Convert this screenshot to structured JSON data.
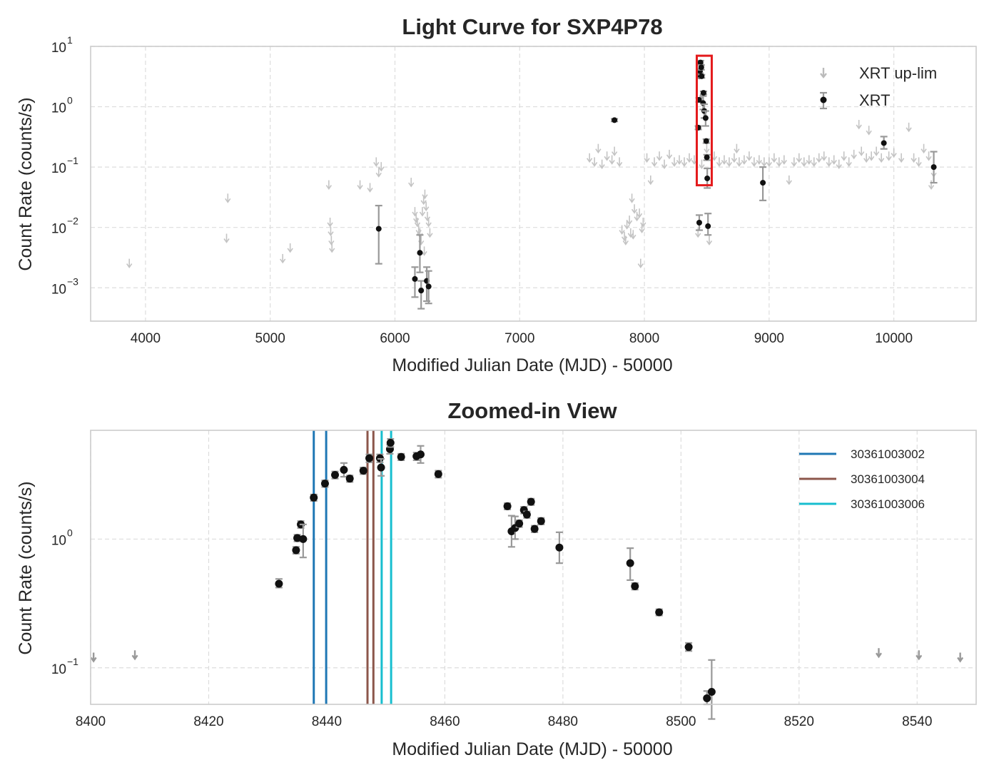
{
  "chart_data": [
    {
      "type": "scatter",
      "title": "Light Curve for SXP4P78",
      "xlabel": "Modified Julian Date (MJD) - 50000",
      "ylabel": "Count Rate (counts/s)",
      "yscale": "log",
      "xlim": [
        3560,
        10660
      ],
      "ylim": [
        0.00028,
        10
      ],
      "xticks": [
        4000,
        5000,
        6000,
        7000,
        8000,
        9000,
        10000
      ],
      "xtick_labels": [
        "4000",
        "5000",
        "6000",
        "7000",
        "8000",
        "9000",
        "10000"
      ],
      "yticks": [
        {
          "value": 0.001,
          "base": "10",
          "exp": "−3"
        },
        {
          "value": 0.01,
          "base": "10",
          "exp": "−2"
        },
        {
          "value": 0.1,
          "base": "10",
          "exp": "−1"
        },
        {
          "value": 1,
          "base": "10",
          "exp": "0"
        },
        {
          "value": 10,
          "base": "10",
          "exp": "1"
        }
      ],
      "grid": true,
      "legend": {
        "position": "top-right",
        "entries": [
          "XRT up-lim",
          "XRT"
        ]
      },
      "annotations": [
        {
          "type": "highlight-box",
          "color": "#e41a1c",
          "x_range": [
            8420,
            8540
          ],
          "y_range": [
            0.05,
            7
          ]
        }
      ],
      "series": [
        {
          "name": "XRT up-lim",
          "kind": "upper-limit",
          "points": [
            [
              3870,
              0.0025
            ],
            [
              4650,
              0.0065
            ],
            [
              4660,
              0.03
            ],
            [
              5100,
              0.003
            ],
            [
              5160,
              0.0045
            ],
            [
              5470,
              0.05
            ],
            [
              5480,
              0.012
            ],
            [
              5485,
              0.0085
            ],
            [
              5490,
              0.006
            ],
            [
              5495,
              0.0045
            ],
            [
              5720,
              0.05
            ],
            [
              5800,
              0.045
            ],
            [
              5850,
              0.12
            ],
            [
              5870,
              0.08
            ],
            [
              5890,
              0.1
            ],
            [
              6130,
              0.055
            ],
            [
              6160,
              0.018
            ],
            [
              6170,
              0.014
            ],
            [
              6180,
              0.012
            ],
            [
              6190,
              0.009
            ],
            [
              6200,
              0.008
            ],
            [
              6210,
              0.006
            ],
            [
              6220,
              0.018
            ],
            [
              6230,
              0.028
            ],
            [
              6240,
              0.035
            ],
            [
              6250,
              0.022
            ],
            [
              6260,
              0.015
            ],
            [
              6270,
              0.012
            ],
            [
              6280,
              0.008
            ],
            [
              6235,
              0.004
            ],
            [
              7560,
              0.14
            ],
            [
              7600,
              0.12
            ],
            [
              7630,
              0.2
            ],
            [
              7660,
              0.11
            ],
            [
              7700,
              0.15
            ],
            [
              7740,
              0.13
            ],
            [
              7760,
              0.18
            ],
            [
              7800,
              0.12
            ],
            [
              7820,
              0.009
            ],
            [
              7840,
              0.007
            ],
            [
              7850,
              0.006
            ],
            [
              7860,
              0.011
            ],
            [
              7880,
              0.013
            ],
            [
              7900,
              0.03
            ],
            [
              7920,
              0.02
            ],
            [
              7940,
              0.015
            ],
            [
              7960,
              0.017
            ],
            [
              7980,
              0.0095
            ],
            [
              7990,
              0.012
            ],
            [
              7890,
              0.008
            ],
            [
              7910,
              0.0075
            ],
            [
              7970,
              0.0025
            ],
            [
              8020,
              0.14
            ],
            [
              8050,
              0.06
            ],
            [
              8080,
              0.12
            ],
            [
              8120,
              0.15
            ],
            [
              8160,
              0.11
            ],
            [
              8200,
              0.16
            ],
            [
              8240,
              0.12
            ],
            [
              8280,
              0.13
            ],
            [
              8320,
              0.12
            ],
            [
              8360,
              0.14
            ],
            [
              8400,
              0.13
            ],
            [
              8430,
              0.008
            ],
            [
              8460,
              0.11
            ],
            [
              8520,
              0.006
            ],
            [
              8560,
              0.15
            ],
            [
              8600,
              0.12
            ],
            [
              8640,
              0.13
            ],
            [
              8680,
              0.12
            ],
            [
              8720,
              0.14
            ],
            [
              8760,
              0.12
            ],
            [
              8800,
              0.13
            ],
            [
              8840,
              0.15
            ],
            [
              8880,
              0.12
            ],
            [
              8920,
              0.13
            ],
            [
              8960,
              0.12
            ],
            [
              9000,
              0.12
            ],
            [
              9040,
              0.14
            ],
            [
              9080,
              0.12
            ],
            [
              9120,
              0.13
            ],
            [
              9160,
              0.06
            ],
            [
              9200,
              0.12
            ],
            [
              9240,
              0.14
            ],
            [
              9280,
              0.12
            ],
            [
              9320,
              0.13
            ],
            [
              9360,
              0.12
            ],
            [
              9400,
              0.14
            ],
            [
              9440,
              0.15
            ],
            [
              9480,
              0.12
            ],
            [
              9520,
              0.13
            ],
            [
              9560,
              0.11
            ],
            [
              9600,
              0.15
            ],
            [
              9640,
              0.12
            ],
            [
              9680,
              0.16
            ],
            [
              9720,
              0.5
            ],
            [
              9740,
              0.18
            ],
            [
              9780,
              0.14
            ],
            [
              9820,
              0.15
            ],
            [
              9860,
              0.18
            ],
            [
              9900,
              0.14
            ],
            [
              9960,
              0.15
            ],
            [
              10000,
              0.17
            ],
            [
              10060,
              0.14
            ],
            [
              10120,
              0.45
            ],
            [
              10160,
              0.14
            ],
            [
              10200,
              0.12
            ],
            [
              10240,
              0.2
            ],
            [
              10280,
              0.15
            ],
            [
              10300,
              0.05
            ],
            [
              10320,
              0.08
            ],
            [
              9800,
              0.4
            ],
            [
              8740,
              0.2
            ],
            [
              8500,
              0.2
            ]
          ]
        },
        {
          "name": "XRT",
          "kind": "detection",
          "points": [
            [
              5870,
              0.0095,
              0.0025,
              0.023
            ],
            [
              6160,
              0.0014,
              0.0007,
              0.0022
            ],
            [
              6200,
              0.0038,
              0.0018,
              0.0075
            ],
            [
              6210,
              0.0009,
              0.00045,
              0.0013
            ],
            [
              6255,
              0.0013,
              0.0006,
              0.0022
            ],
            [
              6270,
              0.00105,
              0.00055,
              0.0019
            ],
            [
              7760,
              0.6,
              0.57,
              0.63
            ],
            [
              8432,
              0.45,
              0.42,
              0.48
            ],
            [
              8438,
              1.3,
              1.2,
              1.4
            ],
            [
              8442,
              3.2,
              3.0,
              3.4
            ],
            [
              8446,
              3.9,
              3.6,
              4.2
            ],
            [
              8450,
              5.4,
              5.0,
              5.8
            ],
            [
              8456,
              4.5,
              4.1,
              4.9
            ],
            [
              8459,
              3.2,
              3.0,
              3.4
            ],
            [
              8471,
              1.15,
              0.9,
              1.5
            ],
            [
              8474,
              1.7,
              1.6,
              1.8
            ],
            [
              8480,
              0.85,
              0.65,
              1.1
            ],
            [
              8491,
              0.65,
              0.48,
              0.85
            ],
            [
              8496,
              0.27,
              0.25,
              0.29
            ],
            [
              8501,
              0.145,
              0.13,
              0.16
            ],
            [
              8504,
              0.065,
              0.045,
              0.095
            ],
            [
              8440,
              0.012,
              0.009,
              0.016
            ],
            [
              8510,
              0.0105,
              0.0075,
              0.017
            ],
            [
              8950,
              0.055,
              0.028,
              0.1
            ],
            [
              9920,
              0.25,
              0.2,
              0.32
            ],
            [
              10320,
              0.1,
              0.055,
              0.18
            ]
          ]
        }
      ]
    },
    {
      "type": "scatter",
      "title": "Zoomed-in View",
      "xlabel": "Modified Julian Date (MJD) - 50000",
      "ylabel": "Count Rate (counts/s)",
      "yscale": "log",
      "xlim": [
        8400,
        8550
      ],
      "ylim": [
        0.052,
        7
      ],
      "xticks": [
        8400,
        8420,
        8440,
        8460,
        8480,
        8500,
        8520,
        8540
      ],
      "xtick_labels": [
        "8400",
        "8420",
        "8440",
        "8460",
        "8480",
        "8500",
        "8520",
        "8540"
      ],
      "yticks": [
        {
          "value": 0.1,
          "base": "10",
          "exp": "−1"
        },
        {
          "value": 1,
          "base": "10",
          "exp": "0"
        }
      ],
      "grid": true,
      "legend": {
        "position": "top-right",
        "entries": [
          "30361003002",
          "30361003004",
          "30361003006"
        ]
      },
      "vlines": [
        {
          "name": "30361003002",
          "color": "#1f77b4",
          "x": [
            8437.8,
            8439.9
          ]
        },
        {
          "name": "30361003004",
          "color": "#8c564b",
          "x": [
            8446.9,
            8447.9
          ]
        },
        {
          "name": "30361003006",
          "color": "#17becf",
          "x": [
            8449.3,
            8450.9
          ]
        }
      ],
      "series": [
        {
          "name": "XRT up-lim",
          "kind": "upper-limit",
          "points": [
            [
              8400.5,
              0.12
            ],
            [
              8407.5,
              0.125
            ],
            [
              8533.5,
              0.13
            ],
            [
              8540.3,
              0.125
            ],
            [
              8547.3,
              0.12
            ]
          ]
        },
        {
          "name": "XRT",
          "kind": "detection",
          "points": [
            [
              8431.9,
              0.45,
              0.42,
              0.49
            ],
            [
              8434.8,
              0.82,
              0.77,
              0.87
            ],
            [
              8435.0,
              1.02,
              0.96,
              1.08
            ],
            [
              8435.6,
              1.3,
              1.22,
              1.38
            ],
            [
              8436.0,
              1.0,
              0.72,
              1.3
            ],
            [
              8437.8,
              2.1,
              1.98,
              2.22
            ],
            [
              8439.7,
              2.7,
              2.54,
              2.86
            ],
            [
              8441.4,
              3.15,
              2.95,
              3.35
            ],
            [
              8442.9,
              3.45,
              3.05,
              3.9
            ],
            [
              8443.9,
              2.95,
              2.78,
              3.12
            ],
            [
              8446.2,
              3.4,
              3.2,
              3.6
            ],
            [
              8447.2,
              4.25,
              3.95,
              4.55
            ],
            [
              8449.0,
              4.25,
              3.95,
              4.55
            ],
            [
              8449.2,
              3.6,
              3.1,
              4.2
            ],
            [
              8450.7,
              5.0,
              4.6,
              5.4
            ],
            [
              8450.8,
              5.6,
              5.2,
              6.0
            ],
            [
              8452.6,
              4.35,
              4.1,
              4.6
            ],
            [
              8455.2,
              4.4,
              4.1,
              4.7
            ],
            [
              8455.9,
              4.55,
              3.9,
              5.3
            ],
            [
              8458.9,
              3.2,
              3.0,
              3.4
            ],
            [
              8470.6,
              1.8,
              1.7,
              1.9
            ],
            [
              8471.3,
              1.15,
              0.87,
              1.52
            ],
            [
              8471.9,
              1.22,
              1.0,
              1.5
            ],
            [
              8472.6,
              1.32,
              1.24,
              1.4
            ],
            [
              8473.4,
              1.68,
              1.58,
              1.78
            ],
            [
              8473.9,
              1.55,
              1.46,
              1.64
            ],
            [
              8474.6,
              1.95,
              1.84,
              2.06
            ],
            [
              8475.2,
              1.2,
              1.13,
              1.27
            ],
            [
              8476.3,
              1.38,
              1.3,
              1.46
            ],
            [
              8479.4,
              0.86,
              0.65,
              1.13
            ],
            [
              8491.4,
              0.65,
              0.48,
              0.85
            ],
            [
              8492.2,
              0.43,
              0.405,
              0.455
            ],
            [
              8496.3,
              0.27,
              0.255,
              0.285
            ],
            [
              8501.3,
              0.145,
              0.135,
              0.156
            ],
            [
              8504.4,
              0.058,
              0.052,
              0.066
            ],
            [
              8505.2,
              0.065,
              0.04,
              0.115
            ]
          ]
        }
      ]
    }
  ]
}
